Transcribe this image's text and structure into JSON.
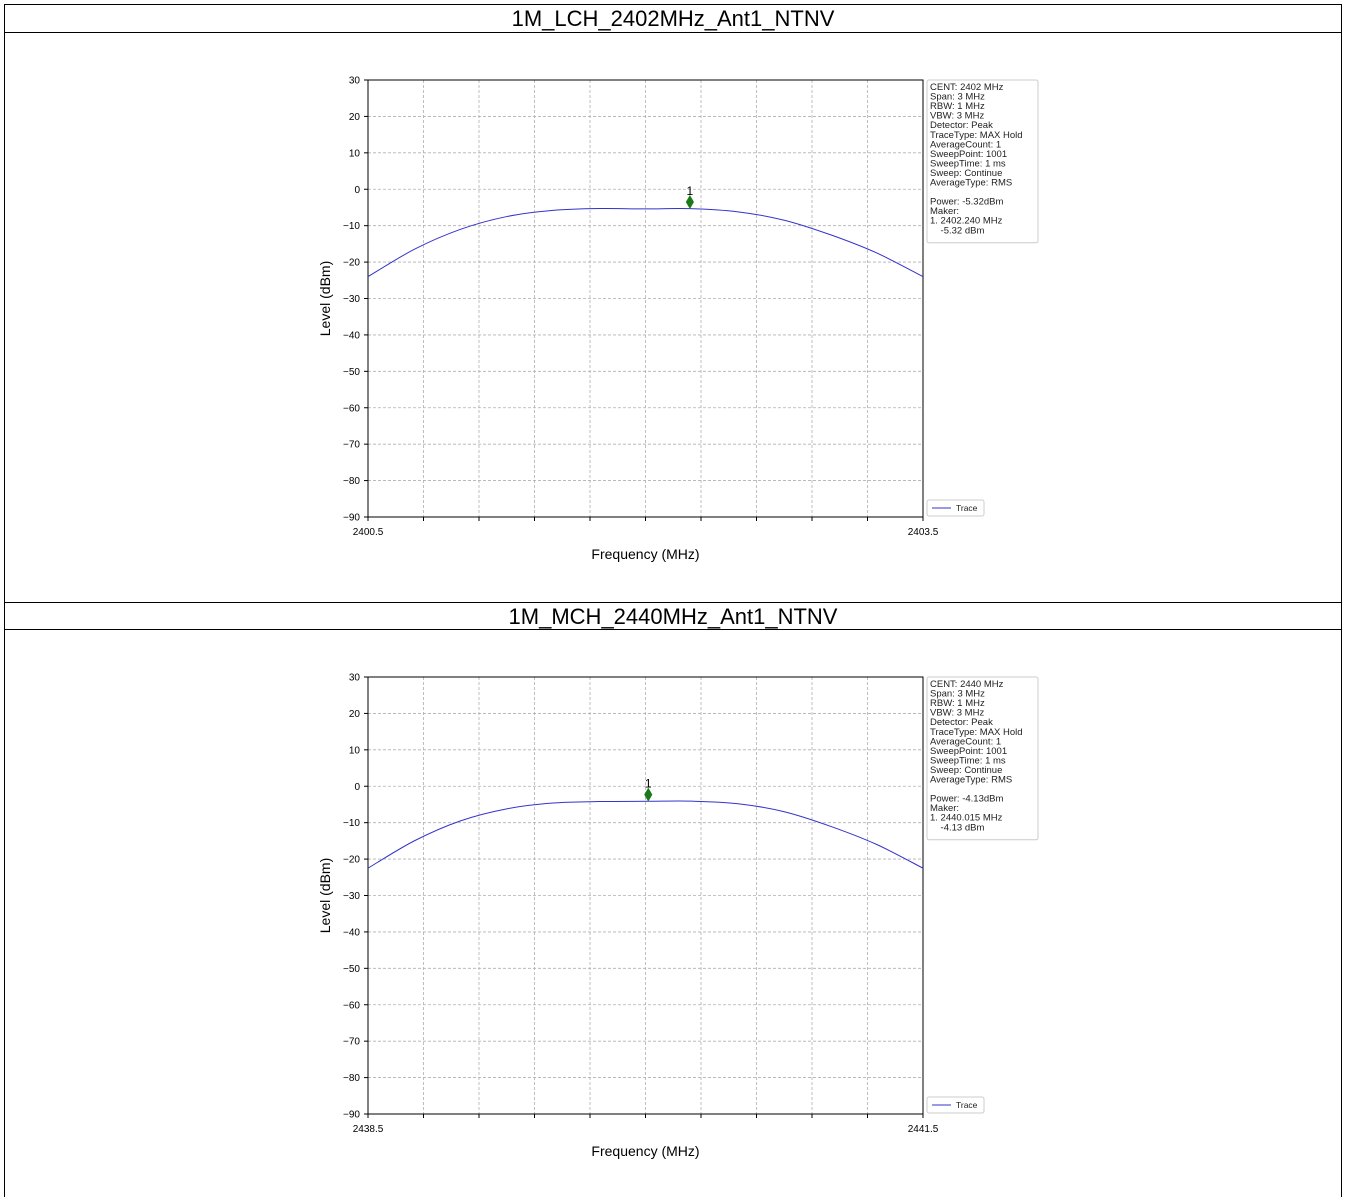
{
  "chart_data": [
    {
      "type": "line",
      "title": "1M_LCH_2402MHz_Ant1_NTNV",
      "xlabel": "Frequency (MHz)",
      "ylabel": "Level (dBm)",
      "xlim": [
        2400.5,
        2403.5
      ],
      "ylim": [
        -90,
        30
      ],
      "x_tick_labels": [
        "2400.5",
        "2403.5"
      ],
      "y_ticks": [
        30,
        20,
        10,
        0,
        -10,
        -20,
        -30,
        -40,
        -50,
        -60,
        -70,
        -80,
        -90
      ],
      "grid": true,
      "legend": {
        "placement": "outside-right-bottom",
        "entries": [
          "Trace"
        ]
      },
      "series": [
        {
          "name": "Trace",
          "color": "#3333cc",
          "x": [
            2400.5,
            2400.75,
            2401.0,
            2401.25,
            2401.5,
            2401.75,
            2402.0,
            2402.24,
            2402.5,
            2402.75,
            2403.0,
            2403.25,
            2403.5
          ],
          "y": [
            -24.0,
            -16.5,
            -11.0,
            -7.5,
            -5.8,
            -5.3,
            -5.4,
            -5.32,
            -6.2,
            -8.5,
            -12.5,
            -17.5,
            -24.0
          ]
        }
      ],
      "marker": {
        "label": "1",
        "x": 2402.24,
        "y": -5.32,
        "display_y": -3.5,
        "color": "#1a7a1a"
      },
      "info_box": [
        "CENT: 2402 MHz",
        "Span: 3 MHz",
        "RBW: 1 MHz",
        "VBW: 3 MHz",
        "Detector: Peak",
        "TraceType: MAX Hold",
        "AverageCount: 1",
        "SweepPoint: 1001",
        "SweepTime: 1 ms",
        "Sweep: Continue",
        "AverageType: RMS",
        "",
        "Power: -5.32dBm",
        "Maker:",
        "1. 2402.240 MHz",
        "    -5.32 dBm"
      ]
    },
    {
      "type": "line",
      "title": "1M_MCH_2440MHz_Ant1_NTNV",
      "xlabel": "Frequency (MHz)",
      "ylabel": "Level (dBm)",
      "xlim": [
        2438.5,
        2441.5
      ],
      "ylim": [
        -90,
        30
      ],
      "x_tick_labels": [
        "2438.5",
        "2441.5"
      ],
      "y_ticks": [
        30,
        20,
        10,
        0,
        -10,
        -20,
        -30,
        -40,
        -50,
        -60,
        -70,
        -80,
        -90
      ],
      "grid": true,
      "legend": {
        "placement": "outside-right-bottom",
        "entries": [
          "Trace"
        ]
      },
      "series": [
        {
          "name": "Trace",
          "color": "#3333cc",
          "x": [
            2438.5,
            2438.75,
            2439.0,
            2439.25,
            2439.5,
            2439.75,
            2440.015,
            2440.25,
            2440.5,
            2440.75,
            2441.0,
            2441.25,
            2441.5
          ],
          "y": [
            -22.5,
            -15.0,
            -9.5,
            -6.2,
            -4.6,
            -4.2,
            -4.13,
            -4.1,
            -4.8,
            -7.0,
            -11.0,
            -16.0,
            -22.5
          ]
        }
      ],
      "marker": {
        "label": "1",
        "x": 2440.015,
        "y": -4.13,
        "display_y": -2.3,
        "color": "#1a7a1a"
      },
      "info_box": [
        "CENT: 2440 MHz",
        "Span: 3 MHz",
        "RBW: 1 MHz",
        "VBW: 3 MHz",
        "Detector: Peak",
        "TraceType: MAX Hold",
        "AverageCount: 1",
        "SweepPoint: 1001",
        "SweepTime: 1 ms",
        "Sweep: Continue",
        "AverageType: RMS",
        "",
        "Power: -4.13dBm",
        "Maker:",
        "1. 2440.015 MHz",
        "    -4.13 dBm"
      ]
    }
  ]
}
